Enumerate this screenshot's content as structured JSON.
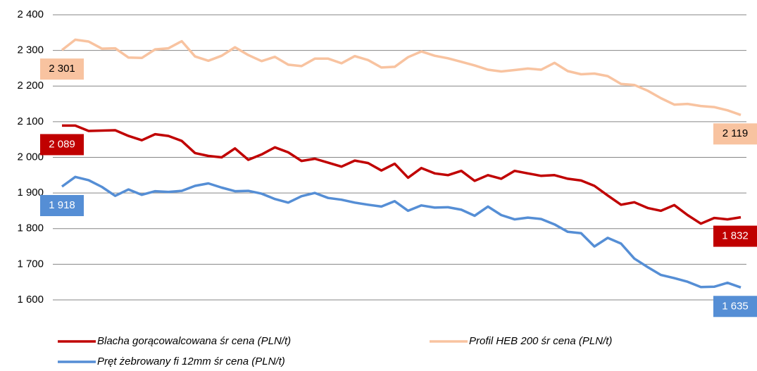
{
  "chart_data": {
    "type": "line",
    "ylim": [
      1600,
      2400
    ],
    "yticks": [
      {
        "value": 1600,
        "label": "1 600"
      },
      {
        "value": 1700,
        "label": "1 700"
      },
      {
        "value": 1800,
        "label": "1 800"
      },
      {
        "value": 1900,
        "label": "1 900"
      },
      {
        "value": 2000,
        "label": "2 000"
      },
      {
        "value": 2100,
        "label": "2 100"
      },
      {
        "value": 2200,
        "label": "2 200"
      },
      {
        "value": 2300,
        "label": "2 300"
      },
      {
        "value": 2400,
        "label": "2 400"
      }
    ],
    "grid": true,
    "legend": "bottom",
    "series": [
      {
        "name": "Blacha gorącowalcowana śr cena (PLN/t)",
        "color": "#c00000",
        "values": [
          2089,
          2089,
          2074,
          2075,
          2076,
          2060,
          2048,
          2065,
          2060,
          2046,
          2012,
          2004,
          2000,
          2025,
          1993,
          2008,
          2028,
          2014,
          1990,
          1996,
          1985,
          1974,
          1991,
          1984,
          1963,
          1982,
          1943,
          1970,
          1955,
          1950,
          1962,
          1934,
          1950,
          1940,
          1962,
          1955,
          1948,
          1950,
          1940,
          1935,
          1920,
          1893,
          1867,
          1874,
          1858,
          1850,
          1866,
          1838,
          1814,
          1830,
          1826,
          1832
        ],
        "value_labels": [
          "2 089",
          null,
          null,
          null,
          null,
          null,
          null,
          null,
          null,
          null,
          null,
          null,
          null,
          null,
          null,
          null,
          null,
          null,
          null,
          null,
          null,
          null,
          null,
          null,
          null,
          null,
          null,
          null,
          null,
          null,
          null,
          null,
          null,
          null,
          null,
          null,
          null,
          null,
          null,
          null,
          null,
          null,
          null,
          null,
          null,
          null,
          null,
          null,
          null,
          null,
          null,
          "1 832"
        ]
      },
      {
        "name": "Profil HEB 200 śr cena (PLN/t)",
        "color": "#f8c3a0",
        "values": [
          2301,
          2330,
          2325,
          2305,
          2306,
          2280,
          2279,
          2303,
          2306,
          2326,
          2283,
          2271,
          2285,
          2309,
          2287,
          2270,
          2282,
          2260,
          2256,
          2277,
          2277,
          2264,
          2284,
          2273,
          2252,
          2254,
          2281,
          2297,
          2285,
          2278,
          2268,
          2258,
          2246,
          2241,
          2245,
          2249,
          2246,
          2265,
          2242,
          2233,
          2235,
          2228,
          2206,
          2203,
          2187,
          2166,
          2148,
          2150,
          2144,
          2141,
          2132,
          2119
        ],
        "value_labels": [
          "2 301",
          null,
          null,
          null,
          null,
          null,
          null,
          null,
          null,
          null,
          null,
          null,
          null,
          null,
          null,
          null,
          null,
          null,
          null,
          null,
          null,
          null,
          null,
          null,
          null,
          null,
          null,
          null,
          null,
          null,
          null,
          null,
          null,
          null,
          null,
          null,
          null,
          null,
          null,
          null,
          null,
          null,
          null,
          null,
          null,
          null,
          null,
          null,
          null,
          null,
          null,
          "2 119"
        ]
      },
      {
        "name": "Pręt żebrowany fi 12mm  śr cena (PLN/t)",
        "color": "#558ed5",
        "values": [
          1918,
          1945,
          1936,
          1917,
          1892,
          1910,
          1895,
          1905,
          1903,
          1906,
          1920,
          1927,
          1915,
          1905,
          1906,
          1898,
          1883,
          1873,
          1891,
          1900,
          1886,
          1881,
          1873,
          1867,
          1862,
          1877,
          1850,
          1865,
          1859,
          1860,
          1853,
          1836,
          1862,
          1838,
          1826,
          1831,
          1827,
          1812,
          1791,
          1787,
          1750,
          1774,
          1758,
          1716,
          1692,
          1670,
          1661,
          1651,
          1636,
          1637,
          1648,
          1635
        ],
        "value_labels": [
          "1 918",
          null,
          null,
          null,
          null,
          null,
          null,
          null,
          null,
          null,
          null,
          null,
          null,
          null,
          null,
          null,
          null,
          null,
          null,
          null,
          null,
          null,
          null,
          null,
          null,
          null,
          null,
          null,
          null,
          null,
          null,
          null,
          null,
          null,
          null,
          null,
          null,
          null,
          null,
          null,
          null,
          null,
          null,
          null,
          null,
          null,
          null,
          null,
          null,
          null,
          null,
          "1 635"
        ]
      }
    ]
  }
}
